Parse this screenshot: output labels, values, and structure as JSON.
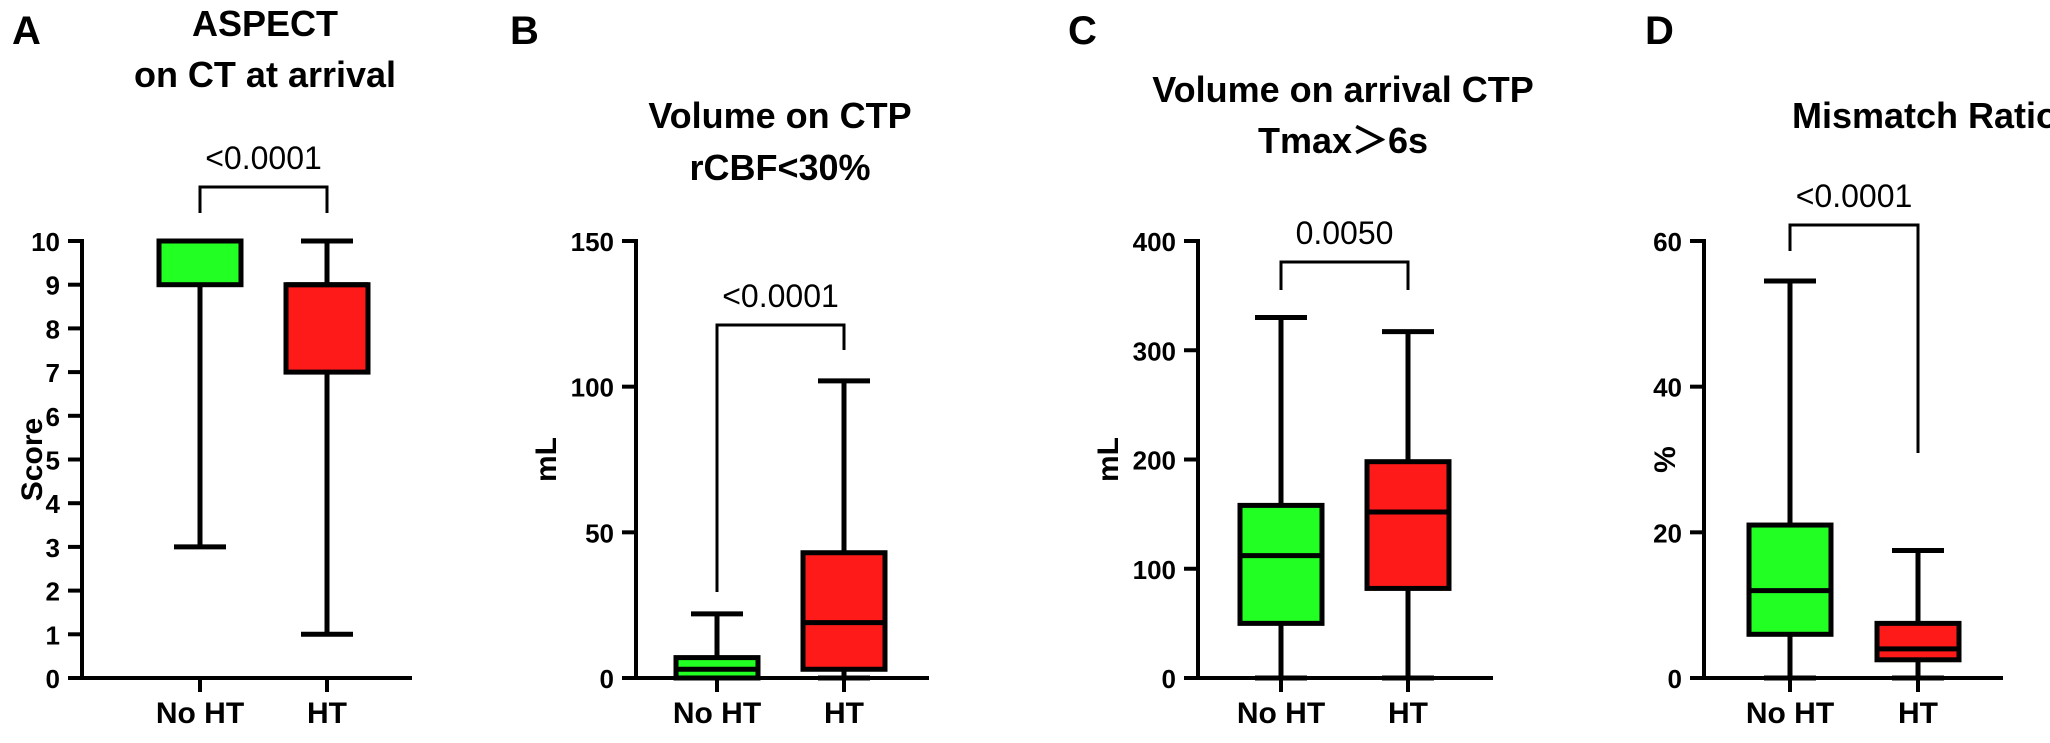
{
  "chart_data": [
    {
      "panel": "A",
      "type": "box",
      "title": [
        "ASPECT",
        "on CT at arrival"
      ],
      "ylabel": "Score",
      "ylim": [
        0,
        10
      ],
      "yticks": [
        0,
        1,
        2,
        3,
        4,
        5,
        6,
        7,
        8,
        9,
        10
      ],
      "categories": [
        "No HT",
        "HT"
      ],
      "boxes": [
        {
          "category": "No HT",
          "min": 3,
          "q1": 9,
          "median": 10,
          "q3": 10,
          "max": 10,
          "color": "#22ff22"
        },
        {
          "category": "HT",
          "min": 1,
          "q1": 7,
          "median": 9,
          "q3": 9,
          "max": 10,
          "color": "#ff1a1a"
        }
      ],
      "p_value": "<0.0001"
    },
    {
      "panel": "B",
      "type": "box",
      "title": [
        "Volume on CTP",
        "rCBF<30%"
      ],
      "ylabel": "mL",
      "ylim": [
        0,
        150
      ],
      "yticks": [
        0,
        50,
        100,
        150
      ],
      "categories": [
        "No HT",
        "HT"
      ],
      "boxes": [
        {
          "category": "No HT",
          "min": 0,
          "q1": 0,
          "median": 3,
          "q3": 7,
          "max": 22,
          "color": "#22ff22"
        },
        {
          "category": "HT",
          "min": 0,
          "q1": 3,
          "median": 19,
          "q3": 43,
          "max": 102,
          "color": "#ff1a1a"
        }
      ],
      "p_value": "<0.0001"
    },
    {
      "panel": "C",
      "type": "box",
      "title": [
        "Volume on arrival CTP",
        "Tmax＞6s"
      ],
      "ylabel": "mL",
      "ylim": [
        0,
        400
      ],
      "yticks": [
        0,
        100,
        200,
        300,
        400
      ],
      "categories": [
        "No HT",
        "HT"
      ],
      "boxes": [
        {
          "category": "No HT",
          "min": 0,
          "q1": 50,
          "median": 112,
          "q3": 158,
          "max": 330,
          "color": "#22ff22"
        },
        {
          "category": "HT",
          "min": 0,
          "q1": 82,
          "median": 152,
          "q3": 198,
          "max": 317,
          "color": "#ff1a1a"
        }
      ],
      "p_value": "0.0050"
    },
    {
      "panel": "D",
      "type": "box",
      "title": [
        "Mismatch Ratio"
      ],
      "ylabel": "%",
      "ylim": [
        0,
        60
      ],
      "yticks": [
        0,
        20,
        40,
        60
      ],
      "categories": [
        "No HT",
        "HT"
      ],
      "boxes": [
        {
          "category": "No HT",
          "min": 0,
          "q1": 6,
          "median": 12,
          "q3": 21,
          "max": 54.5,
          "color": "#22ff22"
        },
        {
          "category": "HT",
          "min": 0,
          "q1": 2.5,
          "median": 4,
          "q3": 7.5,
          "max": 17.5,
          "color": "#ff1a1a"
        }
      ],
      "p_value": "<0.0001"
    }
  ]
}
